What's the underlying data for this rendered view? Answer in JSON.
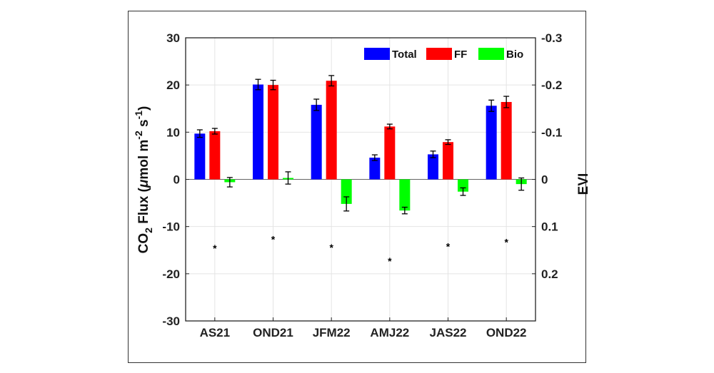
{
  "chart_data": {
    "type": "bar",
    "categories": [
      "AS21",
      "OND21",
      "JFM22",
      "AMJ22",
      "JAS22",
      "OND22"
    ],
    "series": [
      {
        "name": "Total",
        "color": "#0000ff",
        "values": [
          9.7,
          20.1,
          15.8,
          4.6,
          5.3,
          15.6
        ],
        "errors": [
          0.8,
          1.1,
          1.2,
          0.6,
          0.7,
          1.2
        ]
      },
      {
        "name": "FF",
        "color": "#ff0000",
        "values": [
          10.2,
          20.0,
          20.9,
          11.2,
          7.9,
          16.4
        ],
        "errors": [
          0.6,
          1.0,
          1.1,
          0.5,
          0.5,
          1.2
        ]
      },
      {
        "name": "Bio",
        "color": "#00ff00",
        "values": [
          -0.6,
          0.3,
          -5.2,
          -6.6,
          -2.6,
          -1.0
        ],
        "errors": [
          1.0,
          1.3,
          1.5,
          0.7,
          0.8,
          1.3
        ]
      }
    ],
    "evi_markers": {
      "axis": "right",
      "values": [
        0.146,
        0.127,
        0.144,
        0.173,
        0.142,
        0.133
      ]
    },
    "xlabel": "",
    "ylabel": "CO₂ Flux (μmol m⁻² s⁻¹)",
    "ylabel_parts": {
      "co": "CO",
      "sub2": "2",
      "flux": " Flux (",
      "mu": "μ",
      "mol": "mol m",
      "neg2": "-2",
      "s": " s",
      "neg1": "-1",
      "close": ")"
    },
    "ylabel_right": "EVI",
    "ylim": [
      -30,
      30
    ],
    "yticks": [
      30,
      20,
      10,
      0,
      -10,
      -20,
      -30
    ],
    "ylim_right": [
      0.3,
      -0.3
    ],
    "yticks_right": [
      {
        "value": -0.3,
        "label": "-0.3"
      },
      {
        "value": -0.2,
        "label": "-0.2"
      },
      {
        "value": -0.1,
        "label": "-0.1"
      },
      {
        "value": 0,
        "label": "0"
      },
      {
        "value": 0.1,
        "label": "0.1"
      },
      {
        "value": 0.2,
        "label": "0.2"
      }
    ],
    "grid": true,
    "legend": {
      "placement": "top-right",
      "orientation": "horizontal"
    }
  }
}
